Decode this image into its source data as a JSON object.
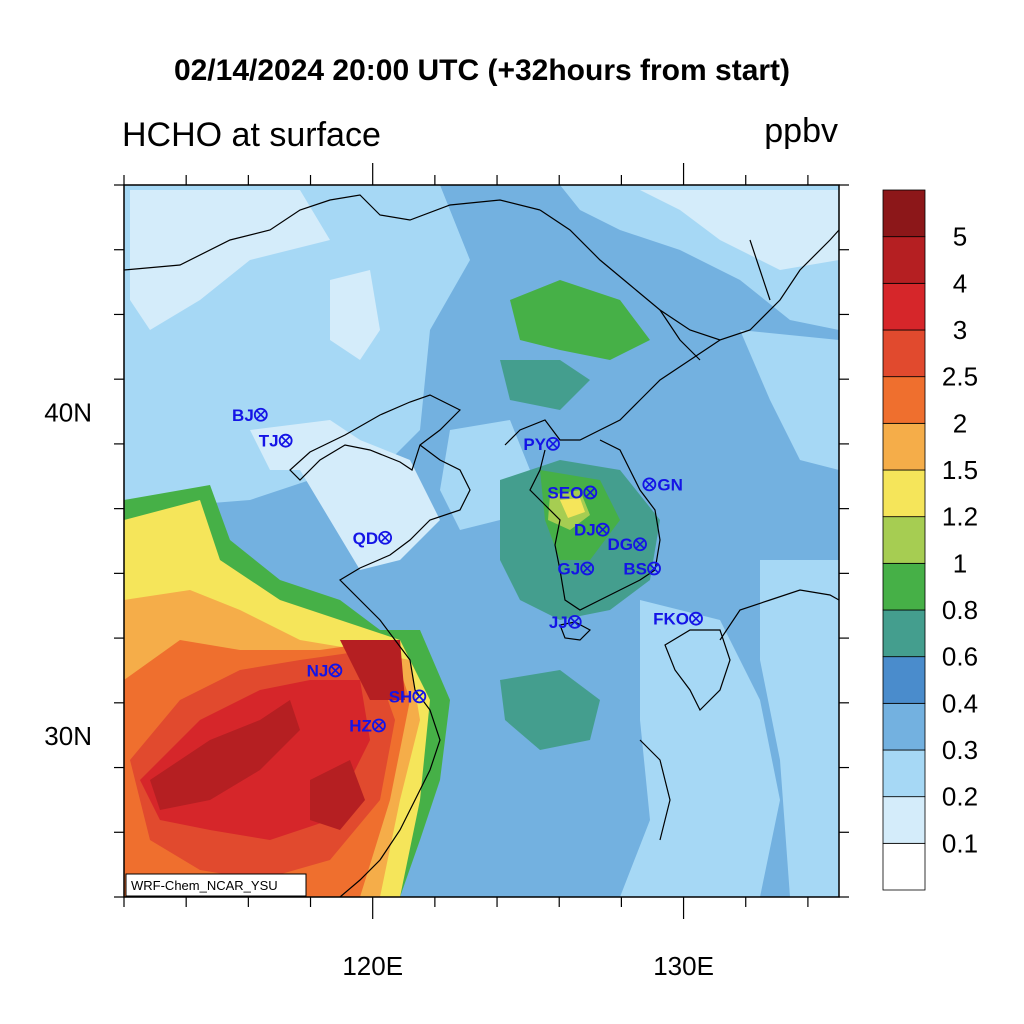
{
  "header": {
    "title": "02/14/2024 20:00 UTC (+32hours from start)",
    "variable": "HCHO at surface",
    "units": "ppbv"
  },
  "map": {
    "lon_range": [
      112,
      135
    ],
    "lat_range": [
      25,
      47
    ],
    "lon_ticks": [
      {
        "value": 120,
        "label": "120E"
      },
      {
        "value": 130,
        "label": "130E"
      }
    ],
    "lat_ticks": [
      {
        "value": 30,
        "label": "30N"
      },
      {
        "value": 40,
        "label": "40N"
      }
    ],
    "credit": "WRF-Chem_NCAR_YSU",
    "cities": [
      {
        "code": "BJ",
        "lon": 116.4,
        "lat": 39.9
      },
      {
        "code": "TJ",
        "lon": 117.2,
        "lat": 39.1
      },
      {
        "code": "QD",
        "lon": 120.4,
        "lat": 36.1
      },
      {
        "code": "NJ",
        "lon": 118.8,
        "lat": 32.0
      },
      {
        "code": "SH",
        "lon": 121.5,
        "lat": 31.2
      },
      {
        "code": "HZ",
        "lon": 120.2,
        "lat": 30.3
      },
      {
        "code": "PY",
        "lon": 125.8,
        "lat": 39.0
      },
      {
        "code": "SEO",
        "lon": 127.0,
        "lat": 37.5
      },
      {
        "code": "GN",
        "lon": 128.9,
        "lat": 37.75
      },
      {
        "code": "DJ",
        "lon": 127.4,
        "lat": 36.35
      },
      {
        "code": "DG",
        "lon": 128.6,
        "lat": 35.9
      },
      {
        "code": "GJ",
        "lon": 126.9,
        "lat": 35.15
      },
      {
        "code": "BS",
        "lon": 129.05,
        "lat": 35.15
      },
      {
        "code": "JJ",
        "lon": 126.5,
        "lat": 33.5
      },
      {
        "code": "FKO",
        "lon": 130.4,
        "lat": 33.6
      }
    ]
  },
  "colorbar": {
    "levels": [
      "0.1",
      "0.2",
      "0.3",
      "0.4",
      "0.6",
      "0.8",
      "1",
      "1.2",
      "1.5",
      "2",
      "2.5",
      "3",
      "4",
      "5"
    ],
    "colors": [
      "#ffffff",
      "#d4ecfa",
      "#a6d8f5",
      "#73b1e0",
      "#4a8ccc",
      "#449e8e",
      "#46b047",
      "#a6cd52",
      "#f5e55a",
      "#f5ad49",
      "#ef6f2e",
      "#e14a2e",
      "#d6262a",
      "#b51f22",
      "#8c1719"
    ]
  }
}
